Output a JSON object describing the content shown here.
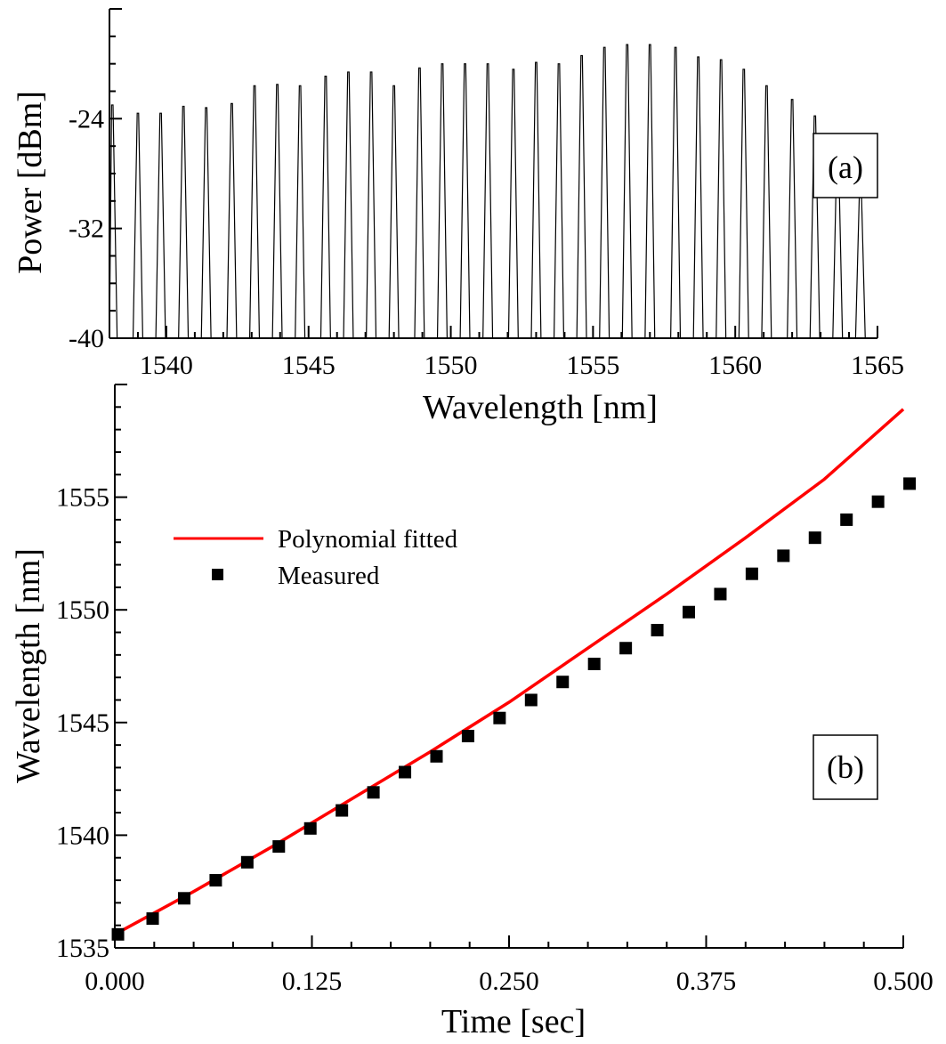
{
  "chart_data": [
    {
      "type": "line",
      "panel_label": "(a)",
      "xlabel": "Wavelength [nm]",
      "ylabel": "Power [dBm]",
      "xlim": [
        1538,
        1565
      ],
      "ylim": [
        -40,
        -16
      ],
      "xticks": [
        "1540",
        "1545",
        "1550",
        "1555",
        "1560",
        "1565"
      ],
      "yticks": [
        "-24",
        "-32",
        "-40"
      ],
      "grid": false,
      "series": [
        {
          "baseline": -40,
          "peak_wavelengths": [
            1538.1,
            1539.0,
            1539.8,
            1540.6,
            1541.4,
            1542.3,
            1543.1,
            1543.9,
            1544.7,
            1545.6,
            1546.4,
            1547.2,
            1548.0,
            1548.9,
            1549.7,
            1550.5,
            1551.3,
            1552.2,
            1553.0,
            1553.8,
            1554.6,
            1555.4,
            1556.2,
            1557.0,
            1557.9,
            1558.7,
            1559.5,
            1560.3,
            1561.1,
            1562.0,
            1562.8,
            1563.6,
            1564.4
          ],
          "peak_powers": [
            -23.0,
            -23.6,
            -23.6,
            -23.1,
            -23.2,
            -22.9,
            -21.6,
            -21.5,
            -21.6,
            -20.9,
            -20.6,
            -20.6,
            -21.6,
            -20.3,
            -20.0,
            -20.0,
            -20.0,
            -20.4,
            -19.9,
            -20.0,
            -19.4,
            -18.8,
            -18.6,
            -18.6,
            -18.8,
            -19.5,
            -19.7,
            -20.4,
            -21.6,
            -22.6,
            -23.8,
            -25.9,
            -28.5
          ]
        }
      ]
    },
    {
      "type": "line",
      "panel_label": "(b)",
      "xlabel": "Time [sec]",
      "ylabel": "Wavelength [nm]",
      "xlim": [
        0,
        0.5
      ],
      "ylim": [
        1535,
        1560
      ],
      "xticks": [
        "0.000",
        "0.125",
        "0.250",
        "0.375",
        "0.500"
      ],
      "yticks": [
        "1535",
        "1540",
        "1545",
        "1550",
        "1555"
      ],
      "grid": false,
      "legend_position": "upper-left",
      "fit_color": "#ff0000",
      "series": [
        {
          "name": "Polynomial fitted",
          "kind": "line",
          "x": [
            0.0,
            0.05,
            0.1,
            0.15,
            0.2,
            0.25,
            0.3,
            0.35,
            0.4,
            0.45,
            0.5
          ],
          "y": [
            1535.6,
            1537.5,
            1539.5,
            1541.6,
            1543.7,
            1545.9,
            1548.3,
            1550.7,
            1553.2,
            1555.8,
            1558.9
          ]
        },
        {
          "name": "Measured",
          "kind": "scatter",
          "x": [
            0.002,
            0.024,
            0.044,
            0.064,
            0.084,
            0.104,
            0.124,
            0.144,
            0.164,
            0.184,
            0.204,
            0.224,
            0.244,
            0.264,
            0.284,
            0.304,
            0.324,
            0.344,
            0.364,
            0.384,
            0.404,
            0.424,
            0.444,
            0.464,
            0.484,
            0.504
          ],
          "y": [
            1535.6,
            1536.3,
            1537.2,
            1538.0,
            1538.8,
            1539.5,
            1540.3,
            1541.1,
            1541.9,
            1542.8,
            1543.5,
            1544.4,
            1545.2,
            1546.0,
            1546.8,
            1547.6,
            1548.3,
            1549.1,
            1549.9,
            1550.7,
            1551.6,
            1552.4,
            1553.2,
            1554.0,
            1554.8,
            1555.6
          ]
        }
      ]
    }
  ]
}
